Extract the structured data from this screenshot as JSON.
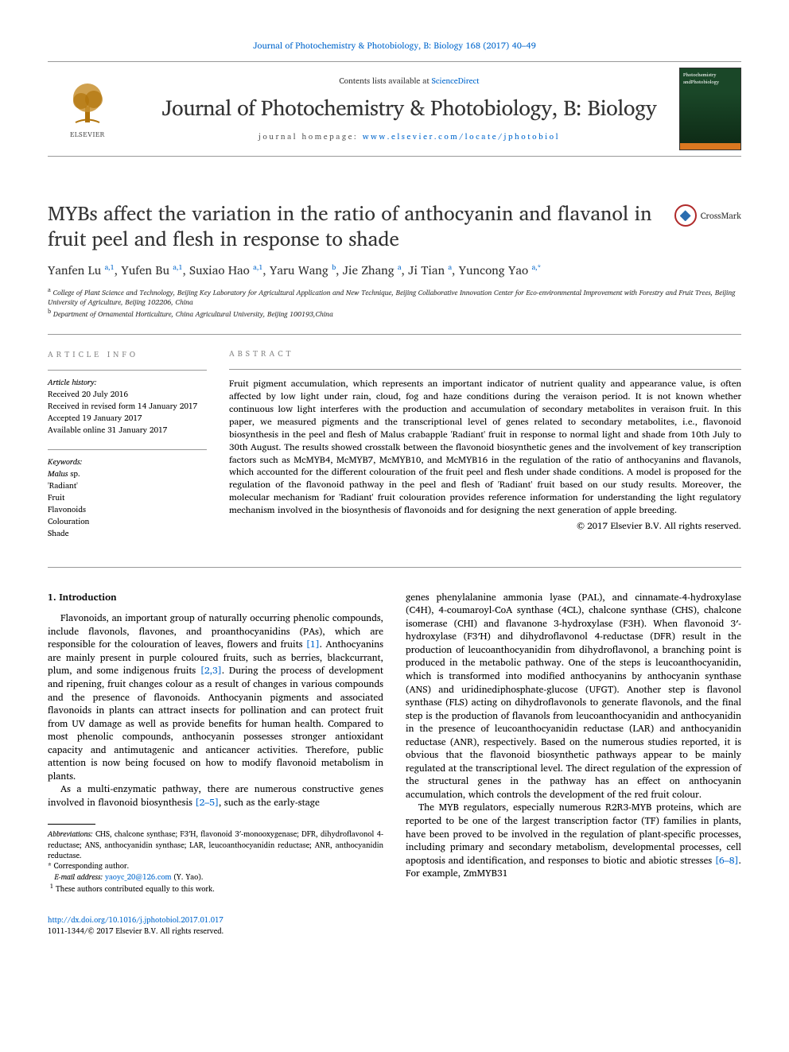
{
  "colors": {
    "link": "#0066cc",
    "text": "#000000",
    "heading_gray": "#888888",
    "rule": "#999999",
    "cover_green": "#1a4728",
    "cover_orange": "#d97820",
    "crossmark_red": "#b02a2a",
    "crossmark_blue": "#2a6db0"
  },
  "fonts": {
    "body_family": "Georgia, 'Times New Roman', serif",
    "title_size_pt": 25,
    "journal_name_size_pt": 27,
    "body_size_pt": 12,
    "abstract_size_pt": 11.5,
    "footnote_size_pt": 9.5,
    "affiliation_size_pt": 9
  },
  "header": {
    "journal_link": "Journal of Photochemistry & Photobiology, B: Biology 168 (2017) 40–49",
    "contents_prefix": "Contents lists available at ",
    "contents_link": "ScienceDirect",
    "journal_name": "Journal of Photochemistry & Photobiology, B: Biology",
    "homepage_prefix": "journal homepage: ",
    "homepage_url": "www.elsevier.com/locate/jphotobiol",
    "elsevier_label": "ELSEVIER",
    "cover_label_top": "Photochemistry",
    "cover_label_bottom": "andPhotobiology"
  },
  "crossmark": {
    "label": "CrossMark"
  },
  "title": "MYBs affect the variation in the ratio of anthocyanin and flavanol in fruit peel and flesh in response to shade",
  "authors_html": "Yanfen Lu <sup>a,1</sup>, Yufen Bu <sup>a,1</sup>, Suxiao Hao <sup>a,1</sup>, Yaru Wang <sup>b</sup>, Jie Zhang <sup>a</sup>, Ji Tian <sup>a</sup>, Yuncong Yao <sup>a,*</sup>",
  "affiliations": {
    "a": "College of Plant Science and Technology, Beijing Key Laboratory for Agricultural Application and New Technique, Beijing Collaborative Innovation Center for Eco-environmental Improvement with Forestry and Fruit Trees, Beijing University of Agriculture, Beijing 102206, China",
    "b": "Department of Ornamental Horticulture, China Agricultural University, Beijing 100193,China"
  },
  "article_info": {
    "heading": "article info",
    "history_label": "Article history:",
    "received": "Received 20 July 2016",
    "revised": "Received in revised form 14 January 2017",
    "accepted": "Accepted 19 January 2017",
    "online": "Available online 31 January 2017",
    "keywords_label": "Keywords:",
    "keywords": [
      "Malus sp.",
      "'Radiant'",
      "Fruit",
      "Flavonoids",
      "Colouration",
      "Shade"
    ]
  },
  "abstract": {
    "heading": "abstract",
    "text": "Fruit pigment accumulation, which represents an important indicator of nutrient quality and appearance value, is often affected by low light under rain, cloud, fog and haze conditions during the veraison period. It is not known whether continuous low light interferes with the production and accumulation of secondary metabolites in veraison fruit. In this paper, we measured pigments and the transcriptional level of genes related to secondary metabolites, i.e., flavonoid biosynthesis in the peel and flesh of Malus crabapple 'Radiant' fruit in response to normal light and shade from 10th July to 30th August. The results showed crosstalk between the flavonoid biosynthetic genes and the involvement of key transcription factors such as McMYB4, McMYB7, McMYB10, and McMYB16 in the regulation of the ratio of anthocyanins and flavanols, which accounted for the different colouration of the fruit peel and flesh under shade conditions. A model is proposed for the regulation of the flavonoid pathway in the peel and flesh of 'Radiant' fruit based on our study results. Moreover, the molecular mechanism for 'Radiant' fruit colouration provides reference information for understanding the light regulatory mechanism involved in the biosynthesis of flavonoids and for designing the next generation of apple breeding.",
    "copyright": "© 2017 Elsevier B.V. All rights reserved."
  },
  "body": {
    "section1_heading": "1. Introduction",
    "col1_para1": "Flavonoids, an important group of naturally occurring phenolic compounds, include flavonols, flavones, and proanthocyanidins (PAs), which are responsible for the colouration of leaves, flowers and fruits [1]. Anthocyanins are mainly present in purple coloured fruits, such as berries, blackcurrant, plum, and some indigenous fruits [2,3]. During the process of development and ripening, fruit changes colour as a result of changes in various compounds and the presence of flavonoids. Anthocyanin pigments and associated flavonoids in plants can attract insects for pollination and can protect fruit from UV damage as well as provide benefits for human health. Compared to most phenolic compounds, anthocyanin possesses stronger antioxidant capacity and antimutagenic and anticancer activities. Therefore, public attention is now being focused on how to modify flavonoid metabolism in plants.",
    "col1_para2": "As a multi-enzymatic pathway, there are numerous constructive genes involved in flavonoid biosynthesis [2–5], such as the early-stage",
    "col2_para1": "genes phenylalanine ammonia lyase (PAL), and cinnamate-4-hydroxylase (C4H), 4-coumaroyl-CoA synthase (4CL), chalcone synthase (CHS), chalcone isomerase (CHI) and flavanone 3-hydroxylase (F3H). When flavonoid 3′-hydroxylase (F3′H) and dihydroflavonol 4-reductase (DFR) result in the production of leucoanthocyanidin from dihydroflavonol, a branching point is produced in the metabolic pathway. One of the steps is leucoanthocyanidin, which is transformed into modified anthocyanins by anthocyanin synthase (ANS) and uridinediphosphate-glucose (UFGT). Another step is flavonol synthase (FLS) acting on dihydroflavonols to generate flavonols, and the final step is the production of flavanols from leucoanthocyanidin and anthocyanidin in the presence of leucoanthocyanidin reductase (LAR) and anthocyanidin reductase (ANR), respectively. Based on the numerous studies reported, it is obvious that the flavonoid biosynthetic pathways appear to be mainly regulated at the transcriptional level. The direct regulation of the expression of the structural genes in the pathway has an effect on anthocyanin accumulation, which controls the development of the red fruit colour.",
    "col2_para2": "The MYB regulators, especially numerous R2R3-MYB proteins, which are reported to be one of the largest transcription factor (TF) families in plants, have been proved to be involved in the regulation of plant-specific processes, including primary and secondary metabolism, developmental processes, cell apoptosis and identification, and responses to biotic and abiotic stresses [6–8]. For example, ZmMYB31"
  },
  "footnotes": {
    "abbrev_label": "Abbreviations:",
    "abbrev_text": " CHS, chalcone synthase; F3′H, flavonoid 3′-monooxygenase; DFR, dihydroflavonol 4-reductase; ANS, anthocyanidin synthase; LAR, leucoanthocyanidin reductase; ANR, anthocyanidin reductase.",
    "corresponding": "* Corresponding author.",
    "email_label": "E-mail address: ",
    "email": "yaoyc_20@126.com",
    "email_suffix": " (Y. Yao).",
    "equal": "These authors contributed equally to this work.",
    "equal_marker": "1"
  },
  "footer": {
    "doi": "http://dx.doi.org/10.1016/j.jphotobiol.2017.01.017",
    "issn_line": "1011-1344/© 2017 Elsevier B.V. All rights reserved."
  }
}
